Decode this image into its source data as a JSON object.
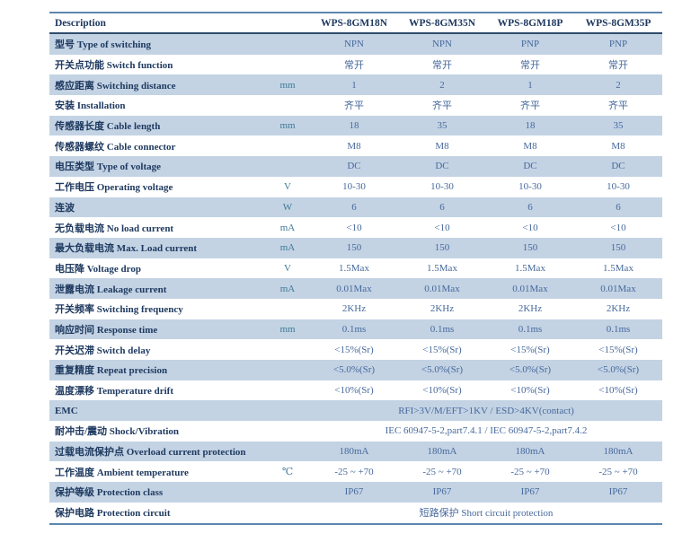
{
  "colors": {
    "row_shade": "#c3d3e4",
    "header_text": "#1f3a60",
    "label_text": "#1f3a60",
    "value_text": "#47699c",
    "unit_text": "#3f7a96",
    "border_outer": "#5d86ae",
    "border_header": "#2f4d6d"
  },
  "table": {
    "description_header": "Description",
    "unit_header": "",
    "model_columns": [
      "WPS-8GM18N",
      "WPS-8GM35N",
      "WPS-8GM18P",
      "WPS-8GM35P"
    ],
    "rows": [
      {
        "label": "型号 Type of switching",
        "unit": "",
        "values": [
          "NPN",
          "NPN",
          "PNP",
          "PNP"
        ]
      },
      {
        "label": "开关点功能 Switch function",
        "unit": "",
        "values": [
          "常开",
          "常开",
          "常开",
          "常开"
        ]
      },
      {
        "label": "感应距离 Switching distance",
        "unit": "mm",
        "values": [
          "1",
          "2",
          "1",
          "2"
        ]
      },
      {
        "label": "安装 Installation",
        "unit": "",
        "values": [
          "齐平",
          "齐平",
          "齐平",
          "齐平"
        ]
      },
      {
        "label": "传感器长度 Cable length",
        "unit": "mm",
        "values": [
          "18",
          "35",
          "18",
          "35"
        ]
      },
      {
        "label": "传感器螺纹 Cable connector",
        "unit": "",
        "values": [
          "M8",
          "M8",
          "M8",
          "M8"
        ]
      },
      {
        "label": "电压类型 Type of voltage",
        "unit": "",
        "values": [
          "DC",
          "DC",
          "DC",
          "DC"
        ]
      },
      {
        "label": "工作电压 Operating voltage",
        "unit": "V",
        "values": [
          "10-30",
          "10-30",
          "10-30",
          "10-30"
        ]
      },
      {
        "label": "连波",
        "unit": "W",
        "values": [
          "6",
          "6",
          "6",
          "6"
        ]
      },
      {
        "label": "无负载电流 No load current",
        "unit": "mA",
        "values": [
          "<10",
          "<10",
          "<10",
          "<10"
        ]
      },
      {
        "label": "最大负载电流 Max. Load current",
        "unit": "mA",
        "values": [
          "150",
          "150",
          "150",
          "150"
        ]
      },
      {
        "label": "电压降 Voltage drop",
        "unit": "V",
        "values": [
          "1.5Max",
          "1.5Max",
          "1.5Max",
          "1.5Max"
        ]
      },
      {
        "label": "泄露电流 Leakage current",
        "unit": "mA",
        "values": [
          "0.01Max",
          "0.01Max",
          "0.01Max",
          "0.01Max"
        ]
      },
      {
        "label": "开关频率 Switching frequency",
        "unit": "",
        "values": [
          "2KHz",
          "2KHz",
          "2KHz",
          "2KHz"
        ]
      },
      {
        "label": "响应时间 Response time",
        "unit": "mm",
        "values": [
          "0.1ms",
          "0.1ms",
          "0.1ms",
          "0.1ms"
        ]
      },
      {
        "label": "开关迟滞 Switch delay",
        "unit": "",
        "values": [
          "<15%(Sr)",
          "<15%(Sr)",
          "<15%(Sr)",
          "<15%(Sr)"
        ]
      },
      {
        "label": "重复精度 Repeat precision",
        "unit": "",
        "values": [
          "<5.0%(Sr)",
          "<5.0%(Sr)",
          "<5.0%(Sr)",
          "<5.0%(Sr)"
        ]
      },
      {
        "label": "温度漂移 Temperature drift",
        "unit": "",
        "values": [
          "<10%(Sr)",
          "<10%(Sr)",
          "<10%(Sr)",
          "<10%(Sr)"
        ]
      },
      {
        "label": "EMC",
        "unit": "",
        "span": "RFI>3V/M/EFT>1KV / ESD>4KV(contact)"
      },
      {
        "label": "耐冲击/震动 Shock/Vibration",
        "unit": "",
        "span": "IEC 60947-5-2,part7.4.1 / IEC 60947-5-2,part7.4.2"
      },
      {
        "label": "过载电流保护点 Overload current protection",
        "unit": "",
        "values": [
          "180mA",
          "180mA",
          "180mA",
          "180mA"
        ]
      },
      {
        "label": "工作温度 Ambient temperature",
        "unit": "℃",
        "values": [
          "-25 ~ +70",
          "-25 ~ +70",
          "-25 ~ +70",
          "-25 ~ +70"
        ]
      },
      {
        "label": "保护等级 Protection class",
        "unit": "",
        "values": [
          "IP67",
          "IP67",
          "IP67",
          "IP67"
        ]
      },
      {
        "label": "保护电路 Protection circuit",
        "unit": "",
        "span": "短路保护 Short circuit protection"
      }
    ]
  }
}
